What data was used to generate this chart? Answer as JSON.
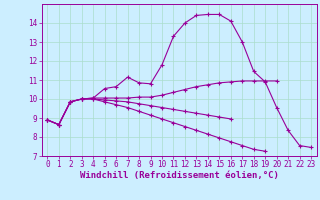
{
  "xlabel": "Windchill (Refroidissement éolien,°C)",
  "background_color": "#cceeff",
  "grid_color": "#aaddcc",
  "line_color": "#990099",
  "xlim": [
    -0.5,
    23.5
  ],
  "ylim": [
    7,
    15
  ],
  "xticks": [
    0,
    1,
    2,
    3,
    4,
    5,
    6,
    7,
    8,
    9,
    10,
    11,
    12,
    13,
    14,
    15,
    16,
    17,
    18,
    19,
    20,
    21,
    22,
    23
  ],
  "yticks": [
    7,
    8,
    9,
    10,
    11,
    12,
    13,
    14
  ],
  "series": [
    [
      8.9,
      8.65,
      9.85,
      10.0,
      10.05,
      10.55,
      10.65,
      11.15,
      10.85,
      10.8,
      11.8,
      13.3,
      14.0,
      14.4,
      14.45,
      14.45,
      14.1,
      13.0,
      11.45,
      10.9,
      9.55,
      8.35,
      7.55,
      7.45
    ],
    [
      8.9,
      8.65,
      9.85,
      10.0,
      10.05,
      10.05,
      10.05,
      10.05,
      10.1,
      10.1,
      10.2,
      10.35,
      10.5,
      10.65,
      10.75,
      10.85,
      10.9,
      10.95,
      10.95,
      10.95,
      10.95,
      null,
      null,
      null
    ],
    [
      8.9,
      8.65,
      9.85,
      10.0,
      10.0,
      9.95,
      9.9,
      9.85,
      9.75,
      9.65,
      9.55,
      9.45,
      9.35,
      9.25,
      9.15,
      9.05,
      8.95,
      null,
      null,
      null,
      null,
      null,
      null,
      null
    ],
    [
      8.9,
      8.65,
      9.85,
      10.0,
      10.0,
      9.85,
      9.7,
      9.55,
      9.35,
      9.15,
      8.95,
      8.75,
      8.55,
      8.35,
      8.15,
      7.95,
      7.75,
      7.55,
      7.35,
      7.25,
      null,
      null,
      null,
      null
    ]
  ],
  "fontsize": 6,
  "tick_fontsize": 5.5,
  "xlabel_fontsize": 6.5
}
